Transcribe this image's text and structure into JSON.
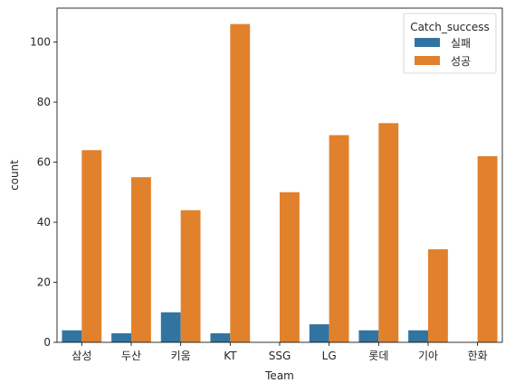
{
  "chart_data": {
    "type": "bar",
    "title": "",
    "xlabel": "Team",
    "ylabel": "count",
    "categories": [
      "삼성",
      "두산",
      "키움",
      "KT",
      "SSG",
      "LG",
      "롯데",
      "기아",
      "한화"
    ],
    "series": [
      {
        "name": "실패",
        "color": "#3274a1",
        "values": [
          4,
          3,
          10,
          3,
          0,
          6,
          4,
          4,
          0
        ]
      },
      {
        "name": "성공",
        "color": "#e1812c",
        "values": [
          64,
          55,
          44,
          106,
          50,
          69,
          73,
          31,
          62
        ]
      }
    ],
    "legend": {
      "title": "Catch_success",
      "placement": "top-right"
    },
    "ylim": [
      0,
      111.3
    ],
    "yticks": [
      0,
      20,
      40,
      60,
      80,
      100
    ],
    "grid": false
  }
}
